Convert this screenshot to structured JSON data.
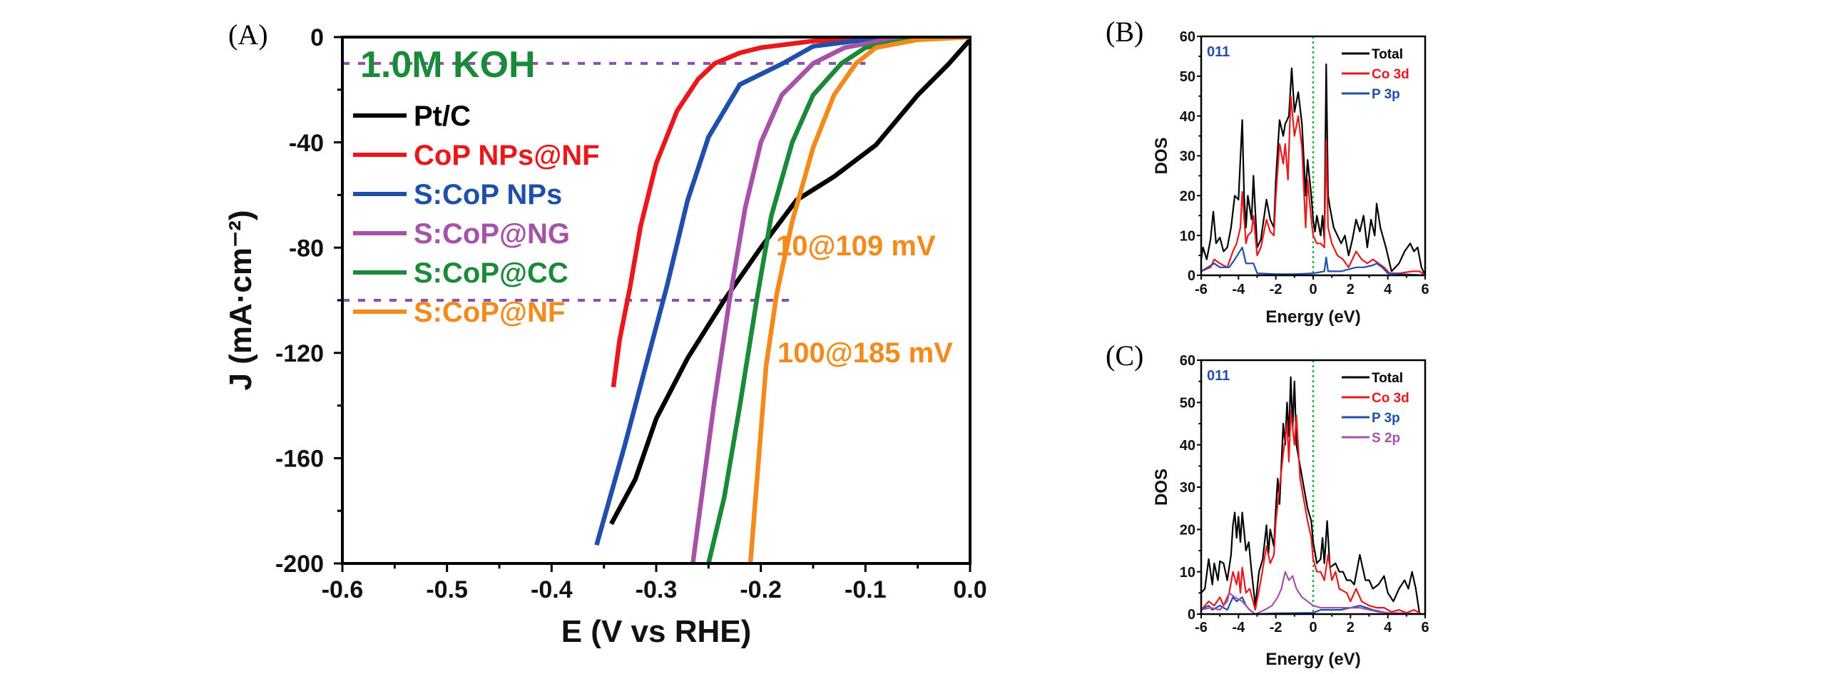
{
  "chart_data": [
    {
      "panel_label": "(A)",
      "type": "line",
      "title": "",
      "xlabel": "E (V vs RHE)",
      "ylabel": "J (mA·cm⁻²)",
      "xlim": [
        -0.6,
        0.0
      ],
      "ylim": [
        -200,
        0
      ],
      "xticks": [
        "-0.6",
        "-0.5",
        "-0.4",
        "-0.3",
        "-0.2",
        "-0.1",
        "0.0"
      ],
      "yticks": [
        "0",
        "-40",
        "-80",
        "-120",
        "-160",
        "-200"
      ],
      "electrolyte_label": "1.0M KOH",
      "legend_position": "top-left",
      "annotations": [
        "10@109 mV",
        "100@185 mV"
      ],
      "reference_lines": [
        {
          "y": -10,
          "x_from": -0.6,
          "x_to": -0.1
        },
        {
          "y": -100,
          "x_from": -0.6,
          "x_to": -0.165
        }
      ],
      "series": [
        {
          "name": "Pt/C",
          "color": "#000000",
          "x": [
            0,
            -0.02,
            -0.05,
            -0.09,
            -0.13,
            -0.166,
            -0.2,
            -0.235,
            -0.27,
            -0.3,
            -0.32,
            -0.343
          ],
          "y": [
            -1,
            -10,
            -22,
            -41,
            -53,
            -62,
            -80,
            -100,
            -122,
            -145,
            -168,
            -185
          ]
        },
        {
          "name": "CoP NPs@NF",
          "color": "#e8191c",
          "x": [
            0,
            -0.1,
            -0.15,
            -0.2,
            -0.22,
            -0.244,
            -0.26,
            -0.28,
            -0.3,
            -0.315,
            -0.325,
            -0.335,
            -0.341
          ],
          "y": [
            0,
            -0.5,
            -1.5,
            -4,
            -6,
            -10,
            -16,
            -28,
            -48,
            -72,
            -95,
            -115,
            -133
          ]
        },
        {
          "name": "S:CoP NPs",
          "color": "#1f4fa8",
          "x": [
            0,
            -0.1,
            -0.15,
            -0.179,
            -0.22,
            -0.25,
            -0.27,
            -0.29,
            -0.31,
            -0.33,
            -0.357
          ],
          "y": [
            0,
            -1,
            -3.5,
            -10,
            -18,
            -38,
            -62,
            -95,
            -125,
            -155,
            -193
          ]
        },
        {
          "name": "S:CoP@NG",
          "color": "#a552a8",
          "x": [
            0,
            -0.08,
            -0.12,
            -0.15,
            -0.18,
            -0.2,
            -0.215,
            -0.23,
            -0.245,
            -0.255,
            -0.265
          ],
          "y": [
            0,
            -1,
            -4,
            -10,
            -22,
            -40,
            -65,
            -100,
            -140,
            -170,
            -200
          ]
        },
        {
          "name": "S:CoP@CC",
          "color": "#1a8a3a",
          "x": [
            0,
            -0.06,
            -0.1,
            -0.123,
            -0.15,
            -0.17,
            -0.19,
            -0.204,
            -0.22,
            -0.235,
            -0.25
          ],
          "y": [
            0,
            -1,
            -4,
            -10,
            -22,
            -40,
            -68,
            -100,
            -140,
            -175,
            -200
          ]
        },
        {
          "name": "S:CoP@NF",
          "color": "#f28a1c",
          "x": [
            0,
            -0.05,
            -0.09,
            -0.109,
            -0.13,
            -0.15,
            -0.17,
            -0.185,
            -0.195,
            -0.2,
            -0.205,
            -0.21
          ],
          "y": [
            0,
            -1,
            -4,
            -10,
            -22,
            -42,
            -70,
            -98,
            -125,
            -150,
            -175,
            -200
          ]
        }
      ]
    },
    {
      "panel_label": "(B)",
      "type": "line",
      "xlabel": "Energy (eV)",
      "ylabel": "DOS",
      "xlim": [
        -6,
        6
      ],
      "ylim": [
        0,
        60
      ],
      "xticks": [
        "-6",
        "-4",
        "-2",
        "0",
        "2",
        "4",
        "6"
      ],
      "yticks": [
        "0",
        "10",
        "20",
        "30",
        "40",
        "50",
        "60"
      ],
      "facet_label": "011",
      "fermi_level": 0,
      "legend_position": "top-right",
      "series": [
        {
          "name": "Total",
          "color": "#000000",
          "x": [
            -6,
            -5.9,
            -5.7,
            -5.5,
            -5.35,
            -5.2,
            -5,
            -4.8,
            -4.6,
            -4.4,
            -4.2,
            -4,
            -3.8,
            -3.7,
            -3.6,
            -3.5,
            -3.3,
            -3.2,
            -3,
            -2.8,
            -2.5,
            -2.3,
            -2.1,
            -2,
            -1.8,
            -1.6,
            -1.5,
            -1.3,
            -1.15,
            -1,
            -0.8,
            -0.6,
            -0.4,
            -0.3,
            -0.1,
            0,
            0.1,
            0.2,
            0.4,
            0.5,
            0.6,
            0.7,
            0.8,
            0.9,
            1.1,
            1.3,
            1.5,
            1.7,
            1.9,
            2.1,
            2.3,
            2.5,
            2.7,
            2.9,
            3.1,
            3.3,
            3.4,
            3.6,
            3.9,
            4.2,
            4.6,
            4.9,
            5.2,
            5.4,
            5.6,
            5.8,
            6
          ],
          "y": [
            4,
            7,
            4,
            9,
            16,
            8,
            9.5,
            6,
            7,
            12,
            20,
            19,
            39,
            20,
            12,
            20,
            14,
            25,
            7,
            9,
            19,
            14,
            12,
            24,
            39,
            35,
            38,
            40,
            52,
            41,
            46,
            38,
            20,
            29,
            20,
            14,
            11,
            15,
            10,
            15,
            9,
            53,
            20,
            17,
            12,
            10,
            8,
            10,
            5,
            9,
            14,
            11,
            15,
            7,
            14,
            10,
            18,
            12,
            7,
            1,
            3,
            6,
            8,
            6,
            7,
            2,
            0
          ]
        },
        {
          "name": "Co 3d",
          "color": "#e8191c",
          "x": [
            -6,
            -5.5,
            -5.3,
            -5,
            -4.6,
            -4.3,
            -4.1,
            -3.9,
            -3.8,
            -3.6,
            -3.5,
            -3.3,
            -3.2,
            -3,
            -2.8,
            -2.5,
            -2.3,
            -2.1,
            -2,
            -1.8,
            -1.6,
            -1.5,
            -1.35,
            -1.2,
            -1,
            -0.8,
            -0.6,
            -0.4,
            -0.3,
            -0.1,
            0,
            0.2,
            0.4,
            0.6,
            0.7,
            0.8,
            1,
            1.3,
            1.6,
            1.9,
            2.3,
            2.6,
            2.9,
            3.2,
            3.5,
            3.8,
            4.1,
            4.6,
            5.3,
            5.7,
            6
          ],
          "y": [
            1,
            2,
            4,
            3,
            2,
            6,
            8,
            12,
            21,
            8,
            10,
            11,
            15,
            5,
            7,
            14,
            11,
            10,
            20,
            33,
            28,
            33,
            24,
            45,
            35,
            40,
            32,
            12,
            24,
            14,
            10,
            8,
            8,
            7,
            34,
            12,
            8,
            5,
            4,
            2,
            6,
            4,
            3,
            4,
            3,
            2,
            0.5,
            0.5,
            1,
            1,
            0
          ]
        },
        {
          "name": "P 3p",
          "color": "#1f4fa8",
          "x": [
            -6,
            -5.3,
            -5,
            -4.5,
            -4.2,
            -3.8,
            -3.6,
            -3.2,
            -3,
            -2,
            -1,
            0,
            0.6,
            0.7,
            0.8,
            1.5,
            2.3,
            2.7,
            3.2,
            3.4,
            3.7,
            4,
            6
          ],
          "y": [
            1,
            3,
            2,
            2,
            4,
            7,
            3,
            3,
            0.5,
            0.3,
            0.3,
            0.5,
            1,
            4.5,
            1,
            1,
            2,
            2,
            2.5,
            3,
            2,
            0.5,
            0
          ]
        }
      ]
    },
    {
      "panel_label": "(C)",
      "type": "line",
      "xlabel": "Energy (eV)",
      "ylabel": "DOS",
      "xlim": [
        -6,
        6
      ],
      "ylim": [
        0,
        60
      ],
      "xticks": [
        "-6",
        "-4",
        "-2",
        "0",
        "2",
        "4",
        "6"
      ],
      "yticks": [
        "0",
        "10",
        "20",
        "30",
        "40",
        "50",
        "60"
      ],
      "facet_label": "011",
      "fermi_level": 0,
      "legend_position": "top-right",
      "series": [
        {
          "name": "Total",
          "color": "#000000",
          "x": [
            -6,
            -5.8,
            -5.6,
            -5.4,
            -5.3,
            -5.1,
            -5,
            -4.8,
            -4.6,
            -4.4,
            -4.3,
            -4.2,
            -4.1,
            -4,
            -3.9,
            -3.8,
            -3.6,
            -3.45,
            -3.3,
            -3.1,
            -2.9,
            -2.7,
            -2.5,
            -2.4,
            -2.3,
            -2.1,
            -2,
            -1.9,
            -1.8,
            -1.6,
            -1.5,
            -1.4,
            -1.3,
            -1.2,
            -1.1,
            -1,
            -0.9,
            -0.7,
            -0.5,
            -0.3,
            -0.1,
            0,
            0.2,
            0.4,
            0.5,
            0.6,
            0.75,
            0.9,
            1.2,
            1.4,
            1.6,
            1.8,
            2,
            2.2,
            2.5,
            2.8,
            3,
            3.2,
            3.5,
            3.8,
            4,
            4.3,
            4.6,
            4.9,
            5.1,
            5.3,
            5.5,
            5.7,
            6
          ],
          "y": [
            5,
            6,
            13,
            7,
            12,
            8,
            12.5,
            12,
            8,
            14,
            21,
            24,
            18,
            23,
            17,
            24,
            15,
            17,
            10,
            2,
            10,
            13,
            21,
            14,
            20,
            16,
            25,
            32,
            26,
            45,
            40,
            50,
            42,
            56,
            44,
            55,
            40,
            35,
            30,
            25,
            22,
            17,
            12,
            13,
            18,
            12,
            22,
            11,
            12,
            10,
            10,
            8,
            8,
            7,
            14,
            8,
            8,
            6,
            7,
            9,
            5,
            3,
            6,
            8,
            6,
            10,
            6,
            0,
            0
          ]
        },
        {
          "name": "Co 3d",
          "color": "#e8191c",
          "x": [
            -6,
            -5.6,
            -5.3,
            -5,
            -4.8,
            -4.5,
            -4.3,
            -4.1,
            -4,
            -3.9,
            -3.8,
            -3.6,
            -3.4,
            -3.1,
            -2.8,
            -2.5,
            -2.3,
            -2.1,
            -2,
            -1.8,
            -1.6,
            -1.4,
            -1.3,
            -1.2,
            -1,
            -0.9,
            -0.7,
            -0.5,
            -0.3,
            -0.1,
            0,
            0.2,
            0.4,
            0.6,
            0.8,
            1,
            1.2,
            1.4,
            1.8,
            2,
            2.3,
            2.6,
            3,
            3.4,
            3.8,
            4.2,
            4.6,
            5,
            5.4,
            5.8,
            6
          ],
          "y": [
            1,
            3,
            2,
            4,
            2,
            5,
            10,
            7,
            10,
            5,
            11,
            5,
            6,
            1,
            8,
            16,
            12,
            14,
            22,
            30,
            38,
            45,
            36,
            48,
            40,
            47,
            32,
            27,
            22,
            18,
            13,
            10,
            10,
            8,
            14,
            8,
            10,
            6,
            5,
            3,
            6,
            3,
            2,
            1.5,
            1.5,
            0.5,
            1,
            0.3,
            1,
            0,
            0
          ]
        },
        {
          "name": "P 3p",
          "color": "#1f4fa8",
          "x": [
            -6,
            -5.6,
            -5.4,
            -5,
            -4.6,
            -4.3,
            -4.1,
            -3.8,
            -3.6,
            -3.4,
            -3.1,
            -2,
            0,
            0.4,
            0.8,
            1.5,
            2.5,
            3.2,
            4,
            6
          ],
          "y": [
            1,
            2,
            1,
            2,
            1,
            4,
            3,
            4,
            2,
            1,
            0,
            0.2,
            0.3,
            1,
            1,
            1,
            2,
            1,
            0.2,
            0
          ]
        },
        {
          "name": "S 2p",
          "color": "#a552a8",
          "x": [
            -6,
            -5.5,
            -5,
            -4.6,
            -4.5,
            -4.2,
            -3.8,
            -3.4,
            -3.1,
            -2.6,
            -2.2,
            -1.9,
            -1.7,
            -1.5,
            -1.3,
            -1.1,
            -0.9,
            -0.6,
            -0.3,
            0,
            0.4,
            0.8,
            1.5,
            2.5,
            3.5,
            4,
            5,
            6
          ],
          "y": [
            1,
            1.5,
            1,
            3,
            5,
            4,
            3,
            1,
            0,
            1,
            2,
            4,
            6,
            10,
            8,
            9,
            6,
            4,
            3,
            2,
            1.5,
            1.5,
            1.5,
            1.5,
            0.5,
            0.3,
            0.2,
            0
          ]
        }
      ]
    }
  ]
}
